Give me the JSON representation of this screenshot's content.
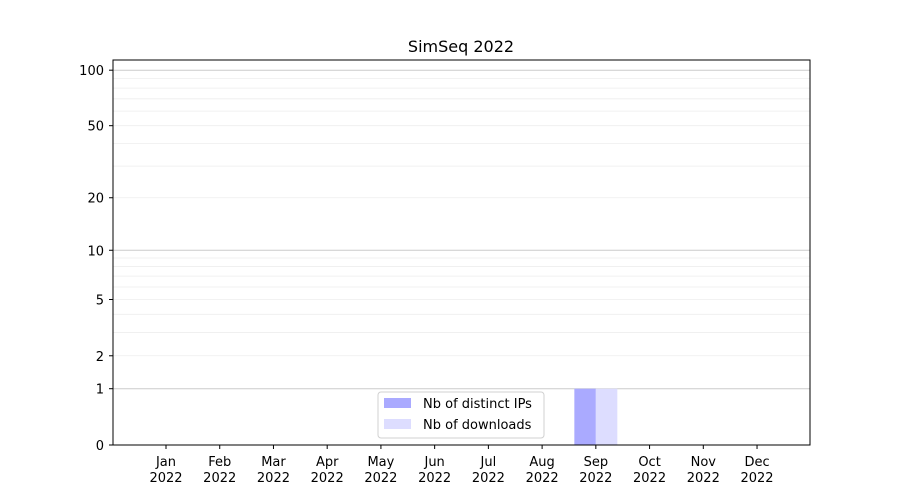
{
  "chart_data": {
    "type": "bar",
    "title": "SimSeq 2022",
    "xlabel": "",
    "ylabel": "",
    "yscale": "log(1+y)",
    "ylim": [
      0,
      113
    ],
    "yticks": [
      0,
      1,
      2,
      5,
      10,
      20,
      50,
      100
    ],
    "major_grid": [
      1,
      10,
      100
    ],
    "minor_grid": [
      3,
      4,
      6,
      7,
      8,
      9,
      30,
      40,
      60,
      70,
      80,
      90
    ],
    "grid": true,
    "categories": [
      "Jan\n2022",
      "Feb\n2022",
      "Mar\n2022",
      "Apr\n2022",
      "May\n2022",
      "Jun\n2022",
      "Jul\n2022",
      "Aug\n2022",
      "Sep\n2022",
      "Oct\n2022",
      "Nov\n2022",
      "Dec\n2022"
    ],
    "series": [
      {
        "name": "Nb of distinct IPs",
        "color": "#aaaaff",
        "values": [
          0,
          0,
          0,
          0,
          0,
          0,
          0,
          0,
          1,
          0,
          0,
          0
        ]
      },
      {
        "name": "Nb of downloads",
        "color": "#ddddff",
        "values": [
          0,
          0,
          0,
          0,
          0,
          0,
          0,
          0,
          1,
          0,
          0,
          0
        ]
      }
    ],
    "legend_position": "lower-center"
  }
}
